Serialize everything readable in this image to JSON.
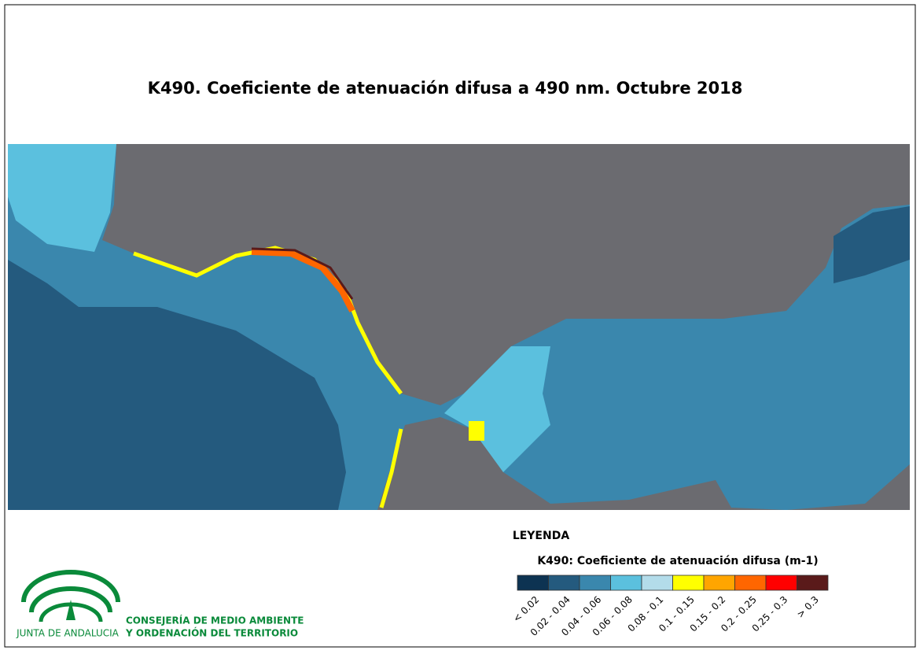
{
  "title": "K490. Coeficiente de atenuación difusa a 490 nm. Octubre 2018",
  "legend": {
    "heading": "LEYENDA",
    "title": "K490: Coeficiente de atenuación difusa (m-1)",
    "classes": [
      {
        "label": "< 0.02",
        "color": "#0d3352"
      },
      {
        "label": "0.02 - 0.04",
        "color": "#245a7e"
      },
      {
        "label": "0.04 - 0.06",
        "color": "#3a87ad"
      },
      {
        "label": "0.06 - 0.08",
        "color": "#5bc0de"
      },
      {
        "label": "0.08 - 0.1",
        "color": "#b3dcea"
      },
      {
        "label": "0.1 - 0.15",
        "color": "#ffff00"
      },
      {
        "label": "0.15 - 0.2",
        "color": "#ffa500"
      },
      {
        "label": "0.2 - 0.25",
        "color": "#ff6600"
      },
      {
        "label": "0.25 - 0.3",
        "color": "#ff0000"
      },
      {
        "label": "> 0.3",
        "color": "#5a1a1a"
      }
    ]
  },
  "logo": {
    "name": "JUNTA DE ANDALUCIA",
    "org_line1": "CONSEJERÍA DE MEDIO AMBIENTE",
    "org_line2": "Y ORDENACIÓN DEL TERRITORIO"
  }
}
